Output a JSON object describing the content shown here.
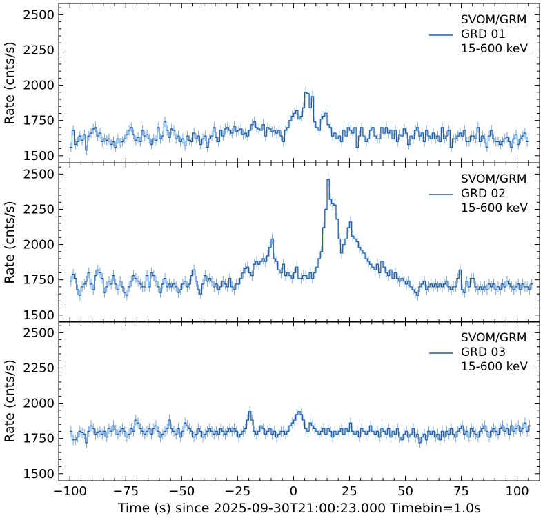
{
  "figure": {
    "xlabel": "Time (s) since 2025-09-30T21:00:23.000 Timebin=1.0s"
  },
  "colors": {
    "line": "#1f5fa8",
    "errorbar": "#7aa7d6"
  },
  "chart_data": [
    {
      "type": "line",
      "style": "step with error bars",
      "ylabel": "Rate (cnts/s)",
      "ylim": [
        1450,
        2580
      ],
      "xlim": [
        -105,
        110
      ],
      "yticks": [
        "1500",
        "1750",
        "2000",
        "2250",
        "2500"
      ],
      "legend": {
        "position": "top-right",
        "lines": [
          "SVOM/GRM",
          "GRD 01",
          "15-600 keV"
        ]
      },
      "series": [
        {
          "name": "GRD 01",
          "x_start": -100,
          "x_step": 1,
          "values": [
            1560,
            1680,
            1580,
            1600,
            1640,
            1610,
            1650,
            1540,
            1640,
            1660,
            1690,
            1700,
            1640,
            1660,
            1600,
            1620,
            1610,
            1620,
            1580,
            1600,
            1560,
            1620,
            1590,
            1600,
            1620,
            1650,
            1680,
            1700,
            1650,
            1610,
            1630,
            1600,
            1680,
            1640,
            1650,
            1620,
            1580,
            1620,
            1610,
            1700,
            1620,
            1640,
            1740,
            1680,
            1630,
            1690,
            1680,
            1620,
            1640,
            1600,
            1620,
            1570,
            1640,
            1610,
            1600,
            1660,
            1620,
            1640,
            1580,
            1620,
            1640,
            1560,
            1620,
            1640,
            1700,
            1630,
            1600,
            1680,
            1640,
            1690,
            1700,
            1680,
            1660,
            1710,
            1670,
            1680,
            1690,
            1650,
            1660,
            1640,
            1680,
            1720,
            1740,
            1700,
            1690,
            1680,
            1720,
            1640,
            1700,
            1690,
            1670,
            1680,
            1660,
            1680,
            1640,
            1600,
            1680,
            1700,
            1750,
            1780,
            1800,
            1820,
            1760,
            1780,
            1840,
            1950,
            1940,
            1840,
            1920,
            1740,
            1700,
            1680,
            1760,
            1780,
            1800,
            1720,
            1700,
            1640,
            1660,
            1620,
            1640,
            1600,
            1680,
            1640,
            1700,
            1680,
            1660,
            1700,
            1560,
            1640,
            1700,
            1640,
            1600,
            1620,
            1680,
            1700,
            1640,
            1620,
            1620,
            1700,
            1660,
            1700,
            1660,
            1680,
            1620,
            1680,
            1600,
            1650,
            1640,
            1690,
            1660,
            1580,
            1640,
            1620,
            1680,
            1700,
            1640,
            1660,
            1600,
            1680,
            1640,
            1620,
            1660,
            1620,
            1640,
            1600,
            1700,
            1620,
            1640,
            1680,
            1560,
            1620,
            1620,
            1640,
            1660,
            1640,
            1680,
            1600,
            1600,
            1640,
            1640,
            1620,
            1700,
            1600,
            1640,
            1620,
            1560,
            1640,
            1680,
            1620,
            1600,
            1600,
            1580,
            1600,
            1620,
            1630,
            1600,
            1560,
            1620,
            1650,
            1580,
            1620,
            1640,
            1660,
            1600
          ]
        }
      ]
    },
    {
      "type": "line",
      "style": "step with error bars",
      "ylabel": "Rate (cnts/s)",
      "ylim": [
        1450,
        2580
      ],
      "xlim": [
        -105,
        110
      ],
      "yticks": [
        "1500",
        "1750",
        "2000",
        "2250",
        "2500"
      ],
      "legend": {
        "position": "top-right",
        "lines": [
          "SVOM/GRM",
          "GRD 02",
          "15-600 keV"
        ]
      },
      "series": [
        {
          "name": "GRD 02",
          "x_start": -100,
          "x_step": 1,
          "values": [
            1740,
            1790,
            1760,
            1680,
            1640,
            1700,
            1720,
            1740,
            1800,
            1720,
            1680,
            1780,
            1820,
            1800,
            1760,
            1660,
            1700,
            1740,
            1720,
            1780,
            1720,
            1680,
            1740,
            1700,
            1660,
            1640,
            1700,
            1740,
            1780,
            1760,
            1740,
            1720,
            1700,
            1700,
            1780,
            1700,
            1800,
            1780,
            1740,
            1700,
            1660,
            1720,
            1760,
            1700,
            1720,
            1700,
            1720,
            1700,
            1660,
            1680,
            1720,
            1740,
            1700,
            1720,
            1780,
            1820,
            1740,
            1680,
            1650,
            1720,
            1780,
            1740,
            1760,
            1740,
            1700,
            1720,
            1680,
            1700,
            1740,
            1720,
            1700,
            1760,
            1700,
            1680,
            1720,
            1720,
            1760,
            1800,
            1830,
            1840,
            1800,
            1780,
            1860,
            1880,
            1860,
            1880,
            1900,
            1880,
            1920,
            1980,
            2040,
            1900,
            1880,
            1820,
            1800,
            1860,
            1780,
            1800,
            1780,
            1760,
            1800,
            1840,
            1760,
            1760,
            1780,
            1780,
            1760,
            1800,
            1760,
            1800,
            1840,
            1900,
            1950,
            2120,
            2250,
            2460,
            2320,
            2290,
            2280,
            2180,
            2040,
            1940,
            2000,
            2040,
            2120,
            2160,
            2060,
            2040,
            2020,
            1980,
            1960,
            1940,
            1900,
            1880,
            1860,
            1840,
            1820,
            1860,
            1800,
            1880,
            1840,
            1800,
            1780,
            1820,
            1760,
            1800,
            1760,
            1740,
            1760,
            1740,
            1720,
            1740,
            1700,
            1680,
            1660,
            1640,
            1700,
            1720,
            1740,
            1680,
            1700,
            1720,
            1700,
            1720,
            1700,
            1720,
            1700,
            1720,
            1740,
            1700,
            1680,
            1700,
            1700,
            1760,
            1820,
            1680,
            1660,
            1740,
            1700,
            1760,
            1760,
            1700,
            1680,
            1700,
            1680,
            1700,
            1680,
            1720,
            1700,
            1720,
            1680,
            1700,
            1680,
            1720,
            1700,
            1740,
            1720,
            1700,
            1680,
            1700,
            1720,
            1680,
            1720,
            1700,
            1700,
            1680,
            1720
          ]
        }
      ]
    },
    {
      "type": "line",
      "style": "step with error bars",
      "ylabel": "Rate (cnts/s)",
      "ylim": [
        1450,
        2580
      ],
      "xlim": [
        -105,
        110
      ],
      "yticks": [
        "1500",
        "1750",
        "2000",
        "2250",
        "2500"
      ],
      "legend": {
        "position": "top-right",
        "lines": [
          "SVOM/GRM",
          "GRD 03",
          "15-600 keV"
        ]
      },
      "series": [
        {
          "name": "GRD 03",
          "x_start": -100,
          "x_step": 1,
          "values": [
            1800,
            1740,
            1740,
            1760,
            1800,
            1790,
            1780,
            1720,
            1800,
            1840,
            1820,
            1780,
            1790,
            1800,
            1780,
            1800,
            1760,
            1820,
            1800,
            1840,
            1810,
            1780,
            1800,
            1820,
            1800,
            1760,
            1780,
            1820,
            1800,
            1880,
            1860,
            1820,
            1800,
            1780,
            1800,
            1820,
            1780,
            1820,
            1840,
            1800,
            1760,
            1780,
            1800,
            1820,
            1880,
            1820,
            1800,
            1780,
            1820,
            1760,
            1800,
            1860,
            1840,
            1820,
            1800,
            1760,
            1780,
            1820,
            1800,
            1760,
            1780,
            1800,
            1820,
            1800,
            1780,
            1800,
            1780,
            1820,
            1800,
            1780,
            1800,
            1820,
            1800,
            1820,
            1800,
            1760,
            1780,
            1800,
            1820,
            1880,
            1940,
            1880,
            1800,
            1780,
            1800,
            1840,
            1820,
            1780,
            1800,
            1820,
            1780,
            1800,
            1760,
            1780,
            1800,
            1800,
            1780,
            1800,
            1840,
            1860,
            1880,
            1920,
            1940,
            1920,
            1880,
            1820,
            1800,
            1860,
            1840,
            1820,
            1800,
            1780,
            1800,
            1820,
            1780,
            1820,
            1800,
            1760,
            1800,
            1780,
            1800,
            1820,
            1780,
            1820,
            1800,
            1860,
            1800,
            1780,
            1800,
            1760,
            1820,
            1800,
            1780,
            1800,
            1840,
            1800,
            1780,
            1800,
            1760,
            1820,
            1800,
            1780,
            1820,
            1760,
            1800,
            1780,
            1820,
            1760,
            1740,
            1780,
            1800,
            1760,
            1780,
            1820,
            1760,
            1780,
            1720,
            1760,
            1780,
            1740,
            1800,
            1780,
            1800,
            1760,
            1780,
            1740,
            1800,
            1760,
            1800,
            1780,
            1820,
            1780,
            1760,
            1800,
            1820,
            1840,
            1780,
            1800,
            1760,
            1820,
            1800,
            1780,
            1760,
            1800,
            1820,
            1840,
            1800,
            1760,
            1800,
            1820,
            1800,
            1780,
            1820,
            1840,
            1800,
            1820,
            1780,
            1840,
            1800,
            1820,
            1840,
            1800,
            1820,
            1860,
            1800,
            1840
          ]
        }
      ]
    }
  ]
}
